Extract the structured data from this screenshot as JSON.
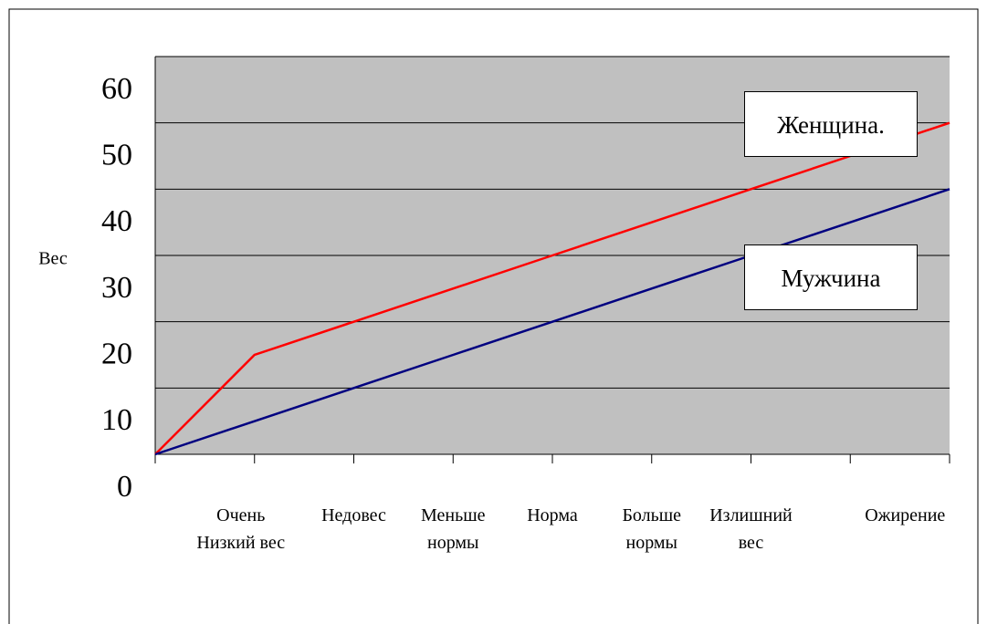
{
  "chart_data": {
    "type": "line",
    "categories": [
      null,
      "Очень Низкий вес",
      "Недовес",
      "Меньше нормы",
      "Норма",
      "Больше нормы",
      "Излишний вес",
      "Ожирение",
      null
    ],
    "series": [
      {
        "name": "Женщина.",
        "color": "#ff0000",
        "values": [
          0,
          15,
          20,
          25,
          30,
          35,
          40,
          45,
          50
        ]
      },
      {
        "name": "Мужчина",
        "color": "#000080",
        "values": [
          0,
          5,
          10,
          15,
          20,
          25,
          30,
          35,
          40
        ]
      }
    ],
    "y_label": "Вес",
    "ylim": [
      0,
      60
    ],
    "yticks": [
      0,
      10,
      20,
      30,
      40,
      50,
      60
    ],
    "grid": true
  }
}
